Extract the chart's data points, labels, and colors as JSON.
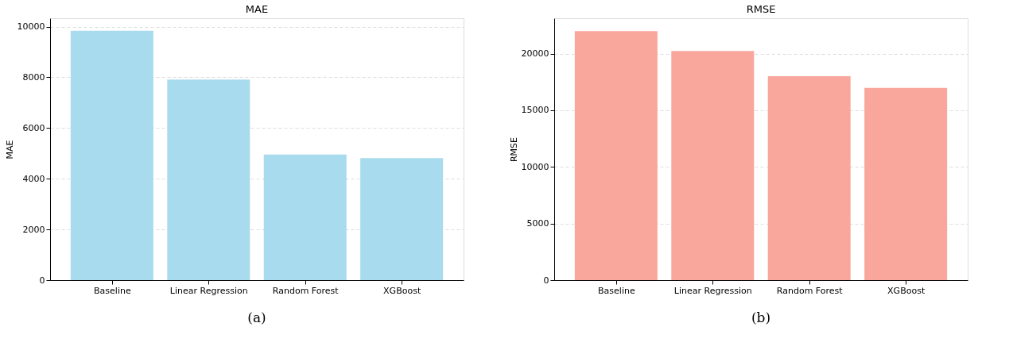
{
  "chart_data": [
    {
      "type": "bar",
      "title": "MAE",
      "ylabel": "MAE",
      "categories": [
        "Baseline",
        "Linear Regression",
        "Random Forest",
        "XGBoost"
      ],
      "values": [
        9840,
        7910,
        4950,
        4810
      ],
      "color": "#a8dbed",
      "ylim": [
        0,
        10330
      ],
      "yticks": [
        0,
        2000,
        4000,
        6000,
        8000,
        10000
      ],
      "grid": "y",
      "annotations": [
        "(a)"
      ]
    },
    {
      "type": "bar",
      "title": "RMSE",
      "ylabel": "RMSE",
      "categories": [
        "Baseline",
        "Linear Regression",
        "Random Forest",
        "XGBoost"
      ],
      "values": [
        21990,
        20240,
        18010,
        16980
      ],
      "color": "#f9a69c",
      "ylim": [
        0,
        23130
      ],
      "yticks": [
        0,
        5000,
        10000,
        15000,
        20000
      ],
      "grid": "y",
      "annotations": [
        "(b)"
      ]
    }
  ]
}
